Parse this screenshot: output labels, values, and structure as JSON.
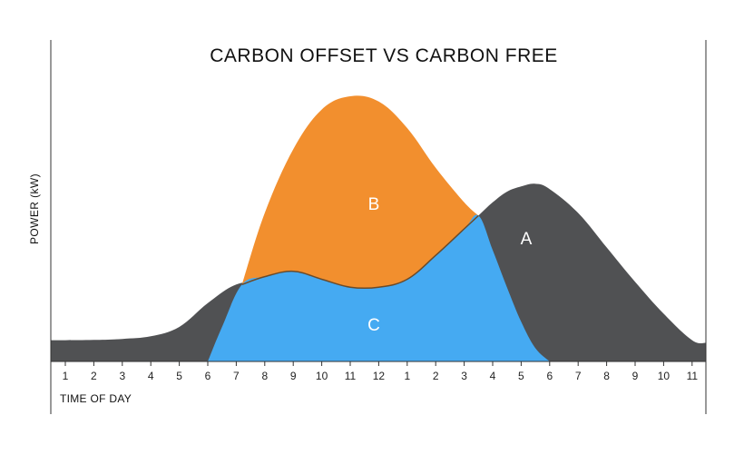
{
  "chart_data": {
    "type": "area",
    "title": "CARBON OFFSET VS CARBON FREE",
    "xlabel": "TIME OF DAY",
    "ylabel": "POWER (kW)",
    "categories": [
      "1",
      "2",
      "3",
      "4",
      "5",
      "6",
      "7",
      "8",
      "9",
      "10",
      "11",
      "12",
      "1",
      "2",
      "3",
      "4",
      "5",
      "6",
      "7",
      "8",
      "9",
      "10",
      "11"
    ],
    "regions": [
      {
        "name": "A",
        "color": "#505153",
        "x": [
          "0.5",
          "1",
          "2",
          "3",
          "4",
          "5",
          "6",
          "7",
          "8",
          "9",
          "10",
          "11",
          "12",
          "1",
          "2",
          "3",
          "3.5",
          "4",
          "4.5",
          "5",
          "5.5",
          "6",
          "7",
          "8",
          "9",
          "10",
          "11",
          "11.5"
        ],
        "values": [
          0.08,
          0.08,
          0.081,
          0.085,
          0.095,
          0.13,
          0.22,
          0.29,
          0.3,
          0.28,
          0.27,
          0.26,
          0.27,
          0.31,
          0.4,
          0.5,
          0.55,
          0.6,
          0.64,
          0.66,
          0.67,
          0.65,
          0.56,
          0.43,
          0.3,
          0.18,
          0.08,
          0.07
        ]
      },
      {
        "name": "B",
        "color": "#f28f2e",
        "x": [
          "7.2",
          "8",
          "9",
          "10",
          "11",
          "12",
          "1",
          "2",
          "3",
          "3.5"
        ],
        "values": [
          0.29,
          0.56,
          0.8,
          0.95,
          1.0,
          0.98,
          0.88,
          0.73,
          0.6,
          0.55
        ]
      },
      {
        "name": "C",
        "color": "#45aaf2",
        "x": [
          "6",
          "6.5",
          "7.2",
          "8",
          "9",
          "10",
          "11",
          "12",
          "1",
          "2",
          "3",
          "3.5",
          "4",
          "4.5",
          "5",
          "5.5",
          "6"
        ],
        "values": [
          0.0,
          0.13,
          0.29,
          0.32,
          0.34,
          0.31,
          0.28,
          0.28,
          0.31,
          0.4,
          0.5,
          0.55,
          0.42,
          0.28,
          0.15,
          0.05,
          0.0
        ]
      }
    ],
    "ylim": [
      0,
      1
    ],
    "grid": false,
    "legend": "none"
  }
}
